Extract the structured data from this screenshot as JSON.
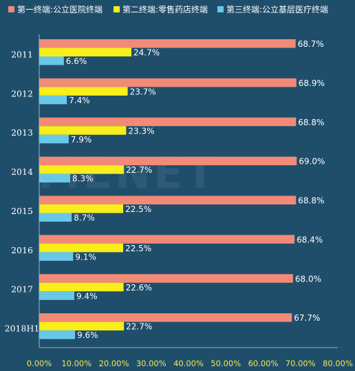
{
  "chart_data": {
    "type": "bar",
    "orientation": "horizontal",
    "categories": [
      "2011",
      "2012",
      "2013",
      "2014",
      "2015",
      "2016",
      "2017",
      "2018H1"
    ],
    "series": [
      {
        "name": "第一终端:公立医院终端",
        "color": "#f28a78",
        "values": [
          68.7,
          68.9,
          68.8,
          69.0,
          68.8,
          68.4,
          68.0,
          67.7
        ]
      },
      {
        "name": "第二终端:零售药店终端",
        "color": "#f7ee1a",
        "values": [
          24.7,
          23.7,
          23.3,
          22.7,
          22.5,
          22.5,
          22.6,
          22.7
        ]
      },
      {
        "name": "第三终端:公立基层医疗终端",
        "color": "#69c8e8",
        "values": [
          6.6,
          7.4,
          7.9,
          8.3,
          8.7,
          9.1,
          9.4,
          9.6
        ]
      }
    ],
    "value_labels": [
      [
        "68.7%",
        "68.9%",
        "68.8%",
        "69.0%",
        "68.8%",
        "68.4%",
        "68.0%",
        "67.7%"
      ],
      [
        "24.7%",
        "23.7%",
        "23.3%",
        "22.7%",
        "22.5%",
        "22.5%",
        "22.6%",
        "22.7%"
      ],
      [
        "6.6%",
        "7.4%",
        "7.9%",
        "8.3%",
        "8.7%",
        "9.1%",
        "9.4%",
        "9.6%"
      ]
    ],
    "xlim": [
      0,
      80
    ],
    "x_ticks": [
      0,
      10,
      20,
      30,
      40,
      50,
      60,
      70,
      80
    ],
    "x_tick_labels": [
      "0.00%",
      "10.00%",
      "20.00%",
      "30.00%",
      "40.00%",
      "50.00%",
      "60.00%",
      "70.00%",
      "80.00%"
    ],
    "legend_position": "top",
    "grid": false,
    "watermark": "MENET",
    "colors": {
      "background": "#1f4e6b",
      "tick_label": "#f4e84a",
      "text": "#ffffff"
    }
  }
}
